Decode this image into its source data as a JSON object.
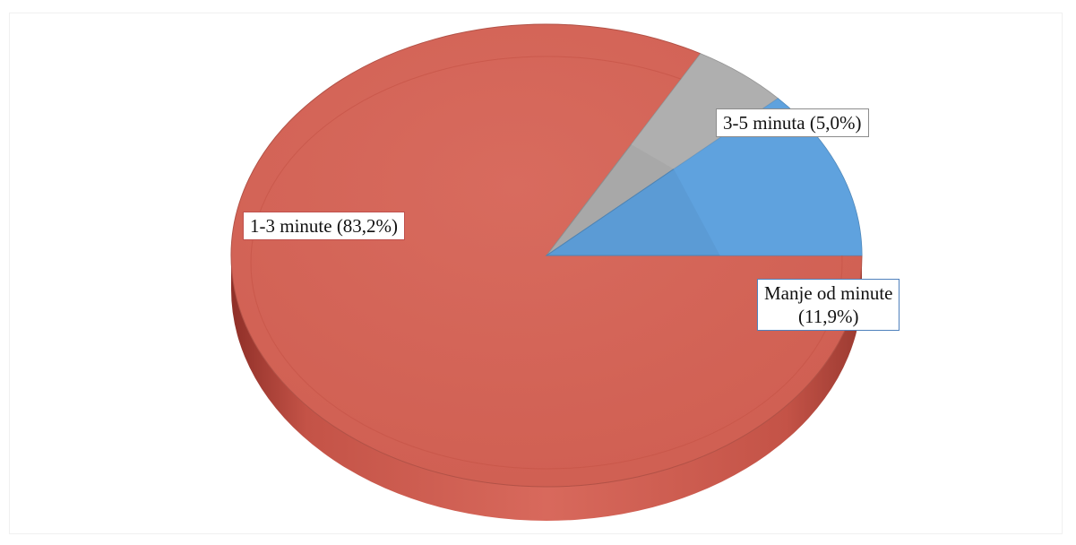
{
  "chart_data": {
    "type": "pie",
    "title": "",
    "slices": [
      {
        "label": "1-3 minute",
        "value": 83.2,
        "label_text": "1-3 minute (83,2%)",
        "color": "#d16153"
      },
      {
        "label": "3-5 minuta",
        "value": 5.0,
        "label_text": "3-5 minuta (5,0%)",
        "color": "#a8a8a8"
      },
      {
        "label": "Manje od minute",
        "value": 11.9,
        "label_text_line1": "Manje od minute",
        "label_text_line2": "(11,9%)",
        "color": "#5b9bd5"
      }
    ],
    "style": "3d-tilted",
    "legend": "none"
  }
}
